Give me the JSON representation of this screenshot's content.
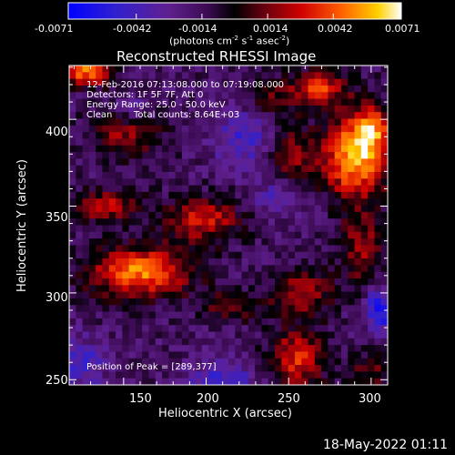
{
  "colorbar": {
    "ticks": [
      "-0.0071",
      "-0.0042",
      "-0.0014",
      "0.0014",
      "0.0042",
      "0.0071"
    ],
    "units_main": "(photons cm",
    "units_sup1": "-2",
    "units_mid": " s",
    "units_sup2": "-1",
    "units_mid2": " asec",
    "units_sup3": "-2",
    "units_end": ")"
  },
  "chart_data": {
    "type": "heatmap",
    "title": "Reconstructed RHESSI Image",
    "xlabel": "Heliocentric X (arcsec)",
    "ylabel": "Heliocentric Y (arcsec)",
    "xlim": [
      117,
      310
    ],
    "ylim": [
      247,
      431
    ],
    "xticks": [
      150,
      200,
      250,
      300
    ],
    "yticks": [
      250,
      300,
      350,
      400
    ],
    "zlim": [
      -0.0071,
      0.0071
    ],
    "annotations": {
      "time": "12-Feb-2016 07:13:08.000 to 07:19:08.000",
      "detectors": "Detectors: 1F 5F 7F, Att 0",
      "energy": "Energy Range: 25.0 - 50.0 keV",
      "method": "Clean",
      "counts": "Total counts: 8.64E+03",
      "peak": "Position of Peak = [289,377]"
    },
    "peak": [
      289,
      377
    ],
    "sources": [
      {
        "x": 290,
        "y": 378,
        "amp": 0.0075,
        "sx": 14,
        "sy": 16
      },
      {
        "x": 300,
        "y": 395,
        "amp": 0.0045,
        "sx": 8,
        "sy": 10
      },
      {
        "x": 268,
        "y": 418,
        "amp": 0.005,
        "sx": 13,
        "sy": 7
      },
      {
        "x": 152,
        "y": 392,
        "amp": 0.0035,
        "sx": 16,
        "sy": 10
      },
      {
        "x": 128,
        "y": 428,
        "amp": 0.0065,
        "sx": 11,
        "sy": 6
      },
      {
        "x": 160,
        "y": 312,
        "amp": 0.0065,
        "sx": 22,
        "sy": 10
      },
      {
        "x": 198,
        "y": 342,
        "amp": 0.0045,
        "sx": 16,
        "sy": 9
      },
      {
        "x": 140,
        "y": 350,
        "amp": 0.004,
        "sx": 14,
        "sy": 7
      },
      {
        "x": 250,
        "y": 380,
        "amp": 0.0035,
        "sx": 10,
        "sy": 14
      },
      {
        "x": 258,
        "y": 300,
        "amp": 0.004,
        "sx": 13,
        "sy": 9
      },
      {
        "x": 295,
        "y": 325,
        "amp": 0.0035,
        "sx": 10,
        "sy": 15
      },
      {
        "x": 255,
        "y": 262,
        "amp": 0.005,
        "sx": 12,
        "sy": 12
      },
      {
        "x": 215,
        "y": 292,
        "amp": 0.003,
        "sx": 12,
        "sy": 6
      },
      {
        "x": 235,
        "y": 412,
        "amp": 0.0022,
        "sx": 10,
        "sy": 8
      },
      {
        "x": 300,
        "y": 255,
        "amp": 0.0025,
        "sx": 9,
        "sy": 8
      }
    ],
    "negatives": [
      {
        "x": 225,
        "y": 390,
        "amp": -0.003,
        "sx": 14,
        "sy": 12
      },
      {
        "x": 210,
        "y": 250,
        "amp": -0.003,
        "sx": 16,
        "sy": 8
      },
      {
        "x": 305,
        "y": 290,
        "amp": -0.0045,
        "sx": 6,
        "sy": 10
      },
      {
        "x": 245,
        "y": 355,
        "amp": -0.0025,
        "sx": 12,
        "sy": 8
      },
      {
        "x": 125,
        "y": 260,
        "amp": -0.0028,
        "sx": 10,
        "sy": 10
      },
      {
        "x": 155,
        "y": 405,
        "amp": -0.002,
        "sx": 10,
        "sy": 6
      }
    ]
  },
  "footer": {
    "date": "18-May-2022 01:11"
  }
}
